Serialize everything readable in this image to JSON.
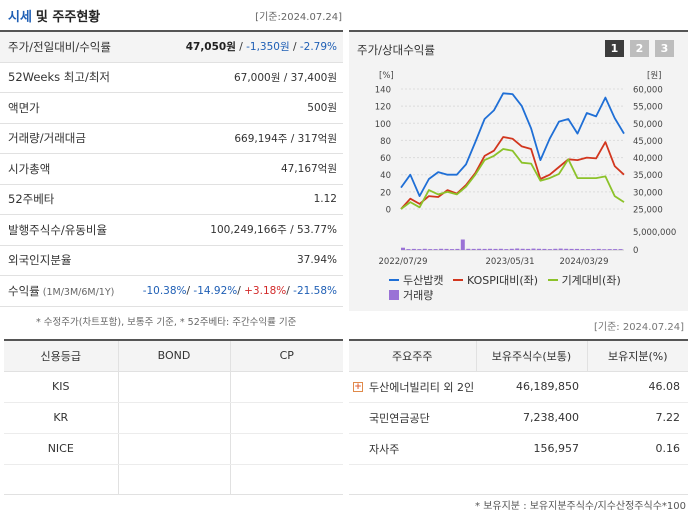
{
  "header": {
    "title_main": "시세",
    "title_rest": "및 주주현황",
    "date": "[기준:2024.07.24]"
  },
  "price_table": [
    {
      "label": "주가/전일대비/수익률",
      "value_parts": [
        {
          "text": "47,050원",
          "cls": "b"
        },
        {
          "text": " / ",
          "cls": ""
        },
        {
          "text": "-1,350원",
          "cls": "blue"
        },
        {
          "text": " / ",
          "cls": ""
        },
        {
          "text": "-2.79%",
          "cls": "blue"
        }
      ]
    },
    {
      "label": "52Weeks 최고/최저",
      "value_parts": [
        {
          "text": "67,000원 / 37,400원",
          "cls": ""
        }
      ]
    },
    {
      "label": "액면가",
      "value_parts": [
        {
          "text": "500원",
          "cls": ""
        }
      ]
    },
    {
      "label": "거래량/거래대금",
      "value_parts": [
        {
          "text": "669,194주 / 317억원",
          "cls": ""
        }
      ]
    },
    {
      "label": "시가총액",
      "value_parts": [
        {
          "text": "47,167억원",
          "cls": ""
        }
      ]
    },
    {
      "label": "52주베타",
      "value_parts": [
        {
          "text": "1.12",
          "cls": ""
        }
      ]
    },
    {
      "label": "발행주식수/유동비율",
      "value_parts": [
        {
          "text": "100,249,166주 / 53.77%",
          "cls": ""
        }
      ]
    },
    {
      "label": "외국인지분율",
      "value_parts": [
        {
          "text": "37.94%",
          "cls": ""
        }
      ]
    },
    {
      "label": "수익률",
      "label_small": " (1M/3M/6M/1Y)",
      "value_parts": [
        {
          "text": "-10.38%",
          "cls": "blue"
        },
        {
          "text": "/ ",
          "cls": ""
        },
        {
          "text": "-14.92%",
          "cls": "blue"
        },
        {
          "text": "/ ",
          "cls": ""
        },
        {
          "text": "+3.18%",
          "cls": "red"
        },
        {
          "text": "/ ",
          "cls": ""
        },
        {
          "text": "-21.58%",
          "cls": "blue"
        }
      ]
    }
  ],
  "left_note": "* 수정주가(차트포함), 보통주 기준, * 52주베타: 주간수익률 기준",
  "chart_panel": {
    "title": "주가/상대수익률",
    "period_buttons": [
      "1",
      "2",
      "3"
    ],
    "active_button": 0
  },
  "chart_data": {
    "type": "line",
    "left_unit": "[%]",
    "right_unit": "[원]",
    "left_ticks": [
      0,
      20,
      40,
      60,
      80,
      100,
      120,
      140
    ],
    "right_ticks": [
      "25,000",
      "30,000",
      "35,000",
      "40,000",
      "45,000",
      "50,000",
      "55,000",
      "60,000"
    ],
    "volume_ticks": [
      "5,000,000",
      "0"
    ],
    "x_labels": [
      "2022/07/29",
      "2023/05/31",
      "2024/03/29"
    ],
    "ylim_left": [
      0,
      140
    ],
    "series": [
      {
        "name": "두산밥캣",
        "color": "#1f6fd6",
        "values": [
          25,
          40,
          15,
          35,
          43,
          40,
          40,
          52,
          78,
          105,
          115,
          135,
          134,
          120,
          94,
          57,
          82,
          102,
          105,
          88,
          112,
          108,
          130,
          106,
          88
        ]
      },
      {
        "name": "KOSPI대비(좌)",
        "color": "#d2361e",
        "values": [
          0,
          12,
          6,
          15,
          14,
          22,
          18,
          28,
          42,
          62,
          68,
          84,
          82,
          73,
          70,
          35,
          40,
          49,
          58,
          57,
          60,
          59,
          78,
          50,
          40
        ]
      },
      {
        "name": "기계대비(좌)",
        "color": "#8cc22a",
        "values": [
          0,
          8,
          2,
          22,
          17,
          20,
          17,
          26,
          40,
          57,
          62,
          70,
          68,
          54,
          53,
          33,
          36,
          41,
          58,
          36,
          36,
          36,
          38,
          15,
          8
        ]
      }
    ],
    "volume": {
      "name": "거래량",
      "color": "#9a72d6",
      "values": [
        1.2,
        0.3,
        0.4,
        0.3,
        0.5,
        0.3,
        0.3,
        0.5,
        0.4,
        0.3,
        0.4,
        6.8,
        0.5,
        0.4,
        0.5,
        0.4,
        0.5,
        0.4,
        0.5,
        0.3,
        0.5,
        0.7,
        0.5,
        0.4,
        0.6,
        0.5,
        0.4,
        0.3,
        0.5,
        0.6,
        0.5,
        0.4,
        0.4,
        0.3,
        0.3,
        0.3,
        0.4,
        0.2,
        0.3,
        0.3,
        0.3
      ]
    }
  },
  "right_date": "[기준: 2024.07.24]",
  "credit_table": {
    "headers": [
      "신용등급",
      "BOND",
      "CP"
    ],
    "rows": [
      "KIS",
      "KR",
      "NICE"
    ]
  },
  "shareholder_table": {
    "headers": [
      "주요주주",
      "보유주식수(보통)",
      "보유지분(%)"
    ],
    "rows": [
      {
        "name": "두산에너빌리티 외 2인",
        "shares": "46,189,850",
        "pct": "46.08",
        "expandable": true
      },
      {
        "name": "국민연금공단",
        "shares": "7,238,400",
        "pct": "7.22",
        "expandable": false
      },
      {
        "name": "자사주",
        "shares": "156,957",
        "pct": "0.16",
        "expandable": false
      }
    ]
  },
  "right_note": "* 보유지분 : 보유지분주식수/지수산정주식수*100"
}
